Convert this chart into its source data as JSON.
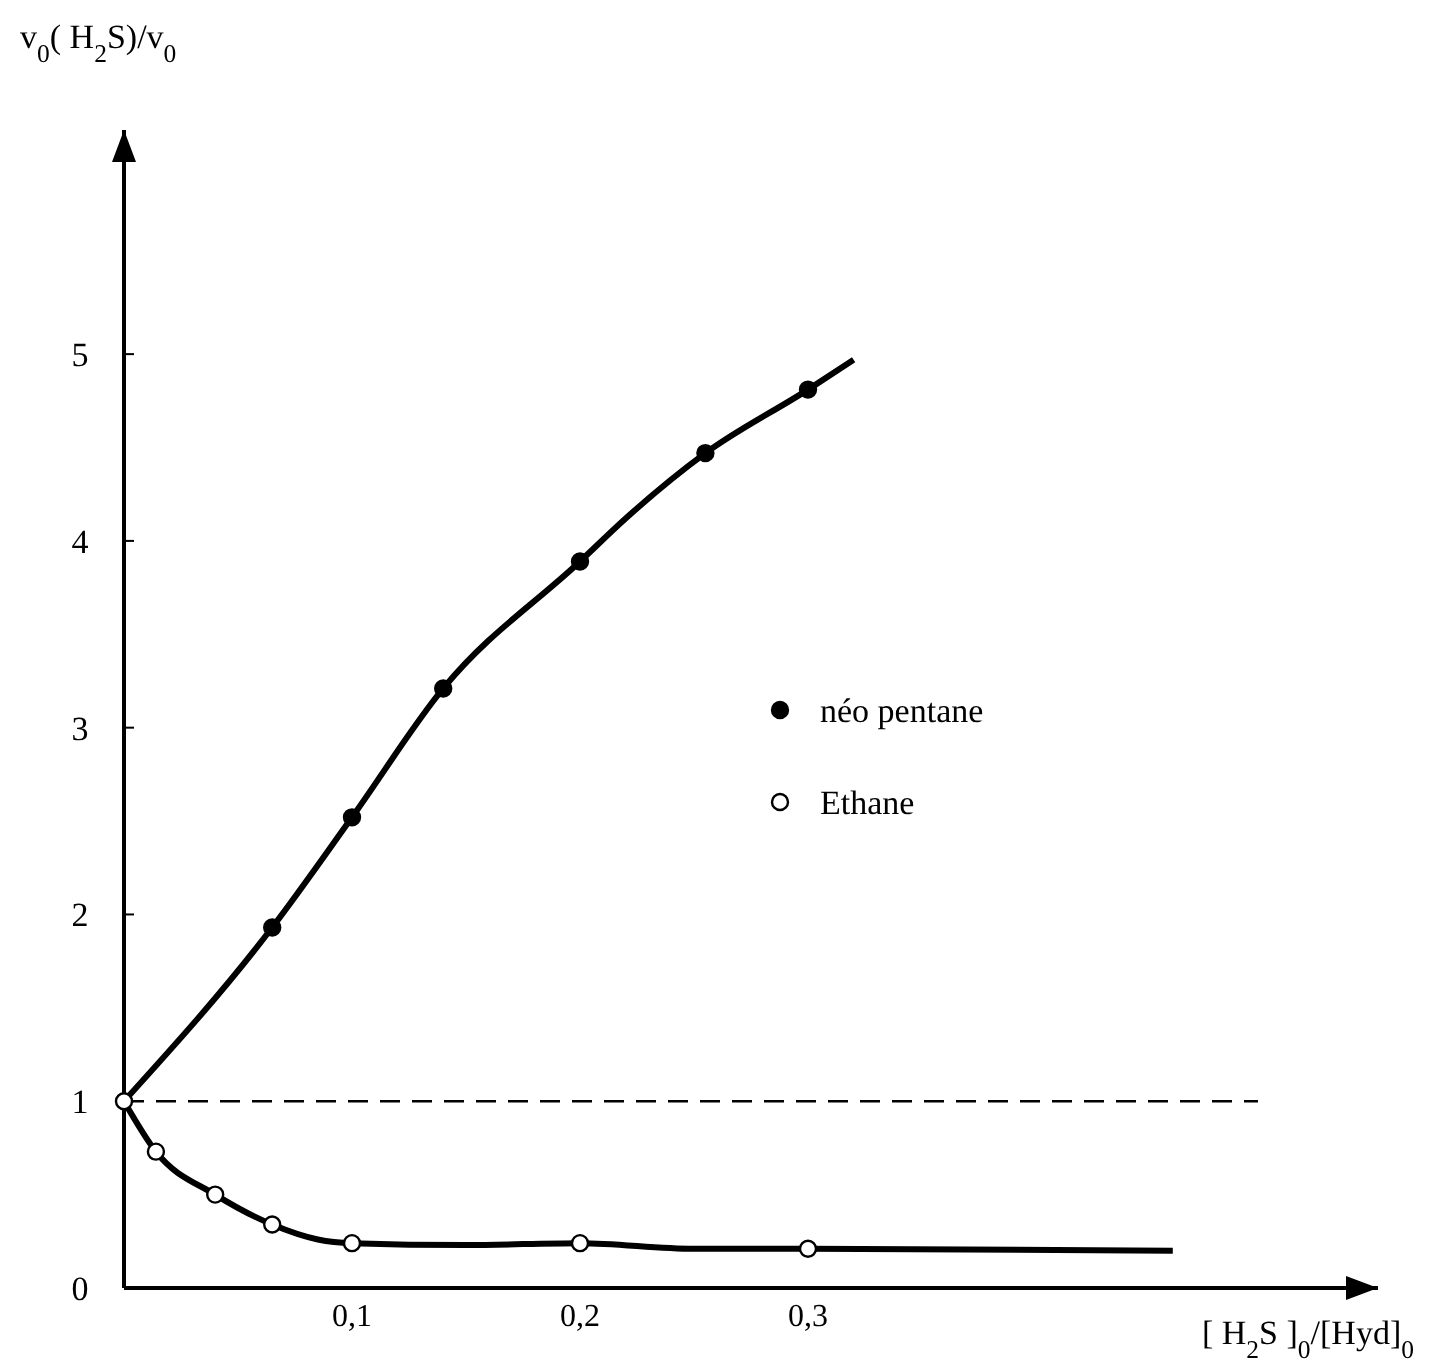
{
  "chart_data": {
    "type": "line",
    "xlabel": "[ H$_{2}$S ]$_{0}$/[Hyd]$_{0}$",
    "ylabel": "v$_{0}$( H$_{2}$S)/v$_{0}$",
    "xlim": [
      0,
      0.55
    ],
    "ylim": [
      0,
      6.2
    ],
    "xticks": [
      {
        "value": 0.1,
        "label": "0,1"
      },
      {
        "value": 0.2,
        "label": "0,2"
      },
      {
        "value": 0.3,
        "label": "0,3"
      }
    ],
    "yticks": [
      0,
      1,
      2,
      3,
      4,
      5
    ],
    "grid": false,
    "legend": "right",
    "line_style": "solid",
    "ref_lines": [
      {
        "axis": "y",
        "value": 1,
        "line_style": "dashed"
      }
    ],
    "series": [
      {
        "color": "#000000",
        "x": [
          0,
          0.065,
          0.1,
          0.14,
          0.2,
          0.22,
          0.255,
          0.3,
          0.32
        ],
        "values": [
          1,
          1.93,
          2.52,
          3.21,
          3.89,
          4.12,
          4.47,
          4.81,
          4.97
        ]
      },
      {
        "color": "#000000",
        "x": [
          0,
          0.014,
          0.04,
          0.065,
          0.085,
          0.1,
          0.15,
          0.2,
          0.25,
          0.3,
          0.46
        ],
        "values": [
          1,
          0.73,
          0.5,
          0.34,
          0.26,
          0.24,
          0.23,
          0.24,
          0.21,
          0.21,
          0.2
        ]
      },
      {
        "type": "scatter",
        "name": "néo pentane",
        "color": "#000000",
        "marker": "circle",
        "x": [
          0.065,
          0.1,
          0.14,
          0.2,
          0.255,
          0.3
        ],
        "values": [
          1.93,
          2.52,
          3.21,
          3.89,
          4.47,
          4.81
        ]
      },
      {
        "type": "scatter",
        "name": "Ethane",
        "color": "#ffffff",
        "marker": "circle",
        "x": [
          0,
          0.014,
          0.04,
          0.065,
          0.1,
          0.2,
          0.3
        ],
        "values": [
          1,
          0.73,
          0.5,
          0.34,
          0.24,
          0.24,
          0.21
        ]
      }
    ]
  }
}
